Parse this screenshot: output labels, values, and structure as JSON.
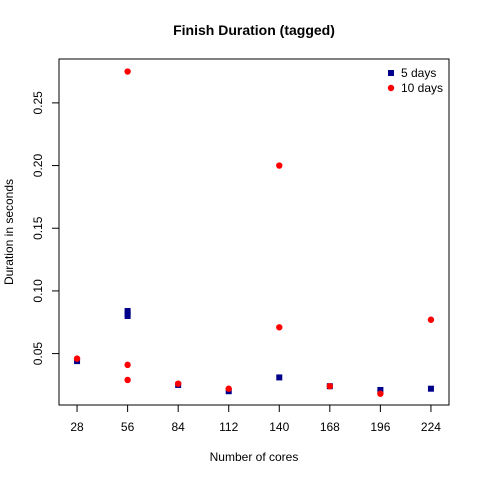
{
  "chart_data": {
    "type": "scatter",
    "title": "Finish Duration (tagged)",
    "xlabel": "Number of cores",
    "ylabel": "Duration in seconds",
    "x_ticks": [
      28,
      56,
      84,
      112,
      140,
      168,
      196,
      224
    ],
    "y_ticks": [
      0.05,
      0.1,
      0.15,
      0.2,
      0.25
    ],
    "y_tick_labels": [
      "0.05",
      "0.10",
      "0.15",
      "0.20",
      "0.25"
    ],
    "xlim": [
      18,
      234
    ],
    "ylim": [
      0.009,
      0.285
    ],
    "grid": false,
    "legend_position": "top-right",
    "series": [
      {
        "name": "5 days",
        "marker": "square",
        "color": "#00008B",
        "points": [
          [
            28,
            0.044
          ],
          [
            56,
            0.08
          ],
          [
            56,
            0.082
          ],
          [
            56,
            0.084
          ],
          [
            84,
            0.025
          ],
          [
            112,
            0.02
          ],
          [
            140,
            0.031
          ],
          [
            168,
            0.024
          ],
          [
            196,
            0.021
          ],
          [
            224,
            0.022
          ]
        ]
      },
      {
        "name": "10 days",
        "marker": "circle",
        "color": "#FF0000",
        "points": [
          [
            28,
            0.046
          ],
          [
            56,
            0.275
          ],
          [
            56,
            0.041
          ],
          [
            56,
            0.029
          ],
          [
            84,
            0.026
          ],
          [
            112,
            0.022
          ],
          [
            140,
            0.2
          ],
          [
            140,
            0.071
          ],
          [
            168,
            0.024
          ],
          [
            196,
            0.018
          ],
          [
            224,
            0.077
          ]
        ]
      }
    ]
  }
}
